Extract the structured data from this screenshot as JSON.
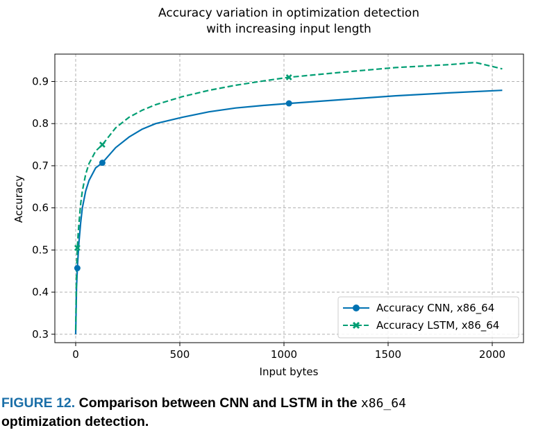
{
  "chart_data": {
    "type": "line",
    "title_lines": [
      "Accuracy variation in optimization detection",
      "with increasing input length"
    ],
    "xlabel": "Input bytes",
    "ylabel": "Accuracy",
    "xlim": [
      -100,
      2150
    ],
    "ylim": [
      0.28,
      0.965
    ],
    "xticks": [
      0,
      500,
      1000,
      1500,
      2000
    ],
    "yticks": [
      0.3,
      0.4,
      0.5,
      0.6,
      0.7,
      0.8,
      0.9
    ],
    "grid": true,
    "legend_position": "lower right",
    "series": [
      {
        "name": "Accuracy CNN, x86_64",
        "color": "#0072b2",
        "dash": "solid",
        "marker": "circle",
        "x": [
          0,
          4,
          8,
          12,
          16,
          24,
          32,
          48,
          64,
          96,
          128,
          192,
          256,
          320,
          384,
          512,
          640,
          768,
          896,
          1024,
          1280,
          1536,
          1792,
          2048
        ],
        "y": [
          0.3,
          0.41,
          0.457,
          0.49,
          0.52,
          0.565,
          0.6,
          0.64,
          0.665,
          0.695,
          0.707,
          0.743,
          0.768,
          0.787,
          0.8,
          0.815,
          0.828,
          0.837,
          0.843,
          0.848,
          0.857,
          0.866,
          0.873,
          0.879
        ],
        "marker_x": [
          8,
          128,
          1024
        ],
        "marker_y": [
          0.457,
          0.707,
          0.848
        ]
      },
      {
        "name": "Accuracy LSTM, x86_64",
        "color": "#009e73",
        "dash": "dashed",
        "marker": "x",
        "x": [
          0,
          4,
          8,
          12,
          16,
          24,
          32,
          48,
          64,
          96,
          128,
          192,
          256,
          320,
          384,
          512,
          640,
          768,
          896,
          1024,
          1280,
          1536,
          1792,
          1920,
          2048
        ],
        "y": [
          0.31,
          0.45,
          0.505,
          0.54,
          0.565,
          0.61,
          0.64,
          0.68,
          0.705,
          0.735,
          0.75,
          0.79,
          0.815,
          0.832,
          0.845,
          0.864,
          0.879,
          0.891,
          0.901,
          0.91,
          0.922,
          0.933,
          0.94,
          0.945,
          0.93
        ],
        "marker_x": [
          8,
          128,
          1024
        ],
        "marker_y": [
          0.505,
          0.75,
          0.91
        ]
      }
    ]
  },
  "caption": {
    "label": "FIGURE 12.",
    "text_before": "Comparison between CNN and LSTM in the",
    "mono": "x86_64",
    "text_after": "optimization detection."
  }
}
